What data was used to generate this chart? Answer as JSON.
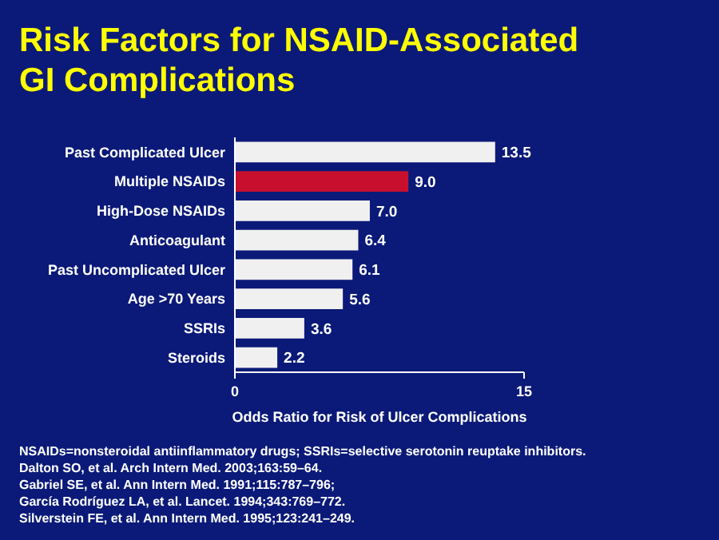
{
  "chart_data": {
    "type": "bar",
    "orientation": "horizontal",
    "title": "Risk Factors for NSAID-Associated GI Complications",
    "xlabel": "Odds Ratio for Risk of Ulcer Complications",
    "categories": [
      "Past Complicated Ulcer",
      "Multiple NSAIDs",
      "High-Dose NSAIDs",
      "Anticoagulant",
      "Past Uncomplicated Ulcer",
      "Age >70 Years",
      "SSRIs",
      "Steroids"
    ],
    "values": [
      13.5,
      9.0,
      7.0,
      6.4,
      6.1,
      5.6,
      3.6,
      2.2
    ],
    "value_labels": [
      "13.5",
      "9.0",
      "7.0",
      "6.4",
      "6.1",
      "5.6",
      "3.6",
      "2.2"
    ],
    "colors": [
      "#f0f0f0",
      "#c8102e",
      "#f0f0f0",
      "#f0f0f0",
      "#f0f0f0",
      "#f0f0f0",
      "#f0f0f0",
      "#f0f0f0"
    ],
    "xlim": [
      0,
      15
    ],
    "xticks": [
      0,
      15
    ],
    "grid": false,
    "annotations": [
      "NSAIDs=nonsteroidal antiinflammatory drugs; SSRIs=selective serotonin reuptake inhibitors.",
      "Dalton SO, et al. Arch Intern Med. 2003;163:59–64.",
      "Gabriel SE, et al. Ann Intern Med. 1991;115:787–796;",
      "García Rodríguez LA, et al. Lancet. 1994;343:769–772.",
      "Silverstein FE, et al. Ann Intern Med. 1995;123:241–249."
    ]
  }
}
